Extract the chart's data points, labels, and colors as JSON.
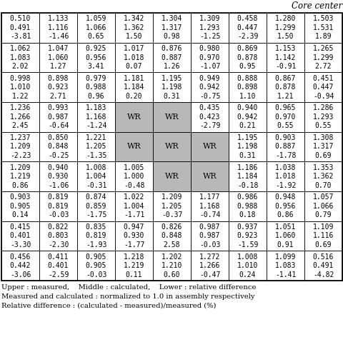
{
  "title": "Core center",
  "rows": 9,
  "cols": 9,
  "cells": [
    [
      [
        "0.510",
        "0.491",
        "-3.81"
      ],
      [
        "1.133",
        "1.116",
        "-1.46"
      ],
      [
        "1.059",
        "1.066",
        "0.65"
      ],
      [
        "1.342",
        "1.362",
        "1.50"
      ],
      [
        "1.304",
        "1.317",
        "0.98"
      ],
      [
        "1.309",
        "1.293",
        "-1.25"
      ],
      [
        "0.458",
        "0.447",
        "-2.39"
      ],
      [
        "1.280",
        "1.299",
        "1.50"
      ],
      [
        "1.503",
        "1.531",
        "1.89"
      ]
    ],
    [
      [
        "1.062",
        "1.083",
        "2.02"
      ],
      [
        "1.047",
        "1.060",
        "1.27"
      ],
      [
        "0.925",
        "0.956",
        "3.41"
      ],
      [
        "1.017",
        "1.018",
        "0.07"
      ],
      [
        "0.876",
        "0.887",
        "1.26"
      ],
      [
        "0.980",
        "0.970",
        "-1.07"
      ],
      [
        "0.869",
        "0.878",
        "0.95"
      ],
      [
        "1.153",
        "1.142",
        "-0.91"
      ],
      [
        "1.265",
        "1.299",
        "2.72"
      ]
    ],
    [
      [
        "0.998",
        "1.010",
        "1.22"
      ],
      [
        "0.898",
        "0.923",
        "2.71"
      ],
      [
        "0.979",
        "0.988",
        "0.96"
      ],
      [
        "1.181",
        "1.184",
        "0.20"
      ],
      [
        "1.195",
        "1.198",
        "0.31"
      ],
      [
        "0.949",
        "0.942",
        "-0.75"
      ],
      [
        "0.888",
        "0.898",
        "1.10"
      ],
      [
        "0.867",
        "0.878",
        "1.21"
      ],
      [
        "0.451",
        "0.447",
        "-0.94"
      ]
    ],
    [
      [
        "1.236",
        "1.266",
        "2.45"
      ],
      [
        "0.993",
        "0.987",
        "-0.64"
      ],
      [
        "1.183",
        "1.168",
        "-1.24"
      ],
      [
        "WR",
        "WR",
        ""
      ],
      [
        "WR",
        "WR",
        ""
      ],
      [
        "0.435",
        "0.423",
        "-2.79"
      ],
      [
        "0.940",
        "0.942",
        "0.21"
      ],
      [
        "0.965",
        "0.970",
        "0.55"
      ],
      [
        "1.286",
        "1.293",
        "0.55"
      ]
    ],
    [
      [
        "1.237",
        "1.209",
        "-2.23"
      ],
      [
        "0.850",
        "0.848",
        "-0.25"
      ],
      [
        "1.221",
        "1.205",
        "-1.35"
      ],
      [
        "WR",
        "WR",
        ""
      ],
      [
        "WR",
        "WR",
        ""
      ],
      [
        "WR",
        "WR",
        ""
      ],
      [
        "1.195",
        "1.198",
        "0.31"
      ],
      [
        "0.903",
        "0.887",
        "-1.78"
      ],
      [
        "1.308",
        "1.317",
        "0.69"
      ]
    ],
    [
      [
        "1.209",
        "1.219",
        "0.86"
      ],
      [
        "0.940",
        "0.930",
        "-1.06"
      ],
      [
        "1.008",
        "1.004",
        "-0.31"
      ],
      [
        "1.005",
        "1.000",
        "-0.48"
      ],
      [
        "WR",
        "WR",
        ""
      ],
      [
        "WR",
        "WR",
        ""
      ],
      [
        "1.186",
        "1.184",
        "-0.18"
      ],
      [
        "1.038",
        "1.018",
        "-1.92"
      ],
      [
        "1.353",
        "1.362",
        "0.70"
      ]
    ],
    [
      [
        "0.903",
        "0.905",
        "0.14"
      ],
      [
        "0.819",
        "0.819",
        "-0.03"
      ],
      [
        "0.874",
        "0.859",
        "-1.75"
      ],
      [
        "1.022",
        "1.004",
        "-1.71"
      ],
      [
        "1.209",
        "1.205",
        "-0.37"
      ],
      [
        "1.177",
        "1.168",
        "-0.74"
      ],
      [
        "0.986",
        "0.988",
        "0.18"
      ],
      [
        "0.948",
        "0.956",
        "0.86"
      ],
      [
        "1.057",
        "1.066",
        "0.79"
      ]
    ],
    [
      [
        "0.415",
        "0.401",
        "-3.30"
      ],
      [
        "0.822",
        "0.803",
        "-2.30"
      ],
      [
        "0.835",
        "0.819",
        "-1.93"
      ],
      [
        "0.947",
        "0.930",
        "-1.77"
      ],
      [
        "0.826",
        "0.848",
        "2.58"
      ],
      [
        "0.987",
        "0.987",
        "-0.03"
      ],
      [
        "0.937",
        "0.923",
        "-1.59"
      ],
      [
        "1.051",
        "1.060",
        "0.91"
      ],
      [
        "1.109",
        "1.116",
        "0.69"
      ]
    ],
    [
      [
        "0.456",
        "0.442",
        "-3.06"
      ],
      [
        "0.411",
        "0.401",
        "-2.59"
      ],
      [
        "0.905",
        "0.905",
        "-0.03"
      ],
      [
        "1.218",
        "1.219",
        "0.11"
      ],
      [
        "1.202",
        "1.210",
        "0.60"
      ],
      [
        "1.272",
        "1.266",
        "-0.47"
      ],
      [
        "1.008",
        "1.010",
        "0.24"
      ],
      [
        "1.099",
        "1.083",
        "-1.41"
      ],
      [
        "0.516",
        "0.491",
        "-4.82"
      ]
    ]
  ],
  "footer_lines": [
    "Upper : measured,    Middle : calculated,    Lower : relative difference",
    "Measured and calculated : normalized to 1.0 in assembly respectively",
    "Relative difference : (calculated - measured)/measured (%)"
  ],
  "grid_color": "#000000",
  "wr_bg_color": "#b8b8b8",
  "cell_bg_color": "#ffffff",
  "font_size_data": 7.0,
  "font_size_footer": 7.2,
  "font_size_title": 8.5,
  "font_size_wr": 8.0
}
